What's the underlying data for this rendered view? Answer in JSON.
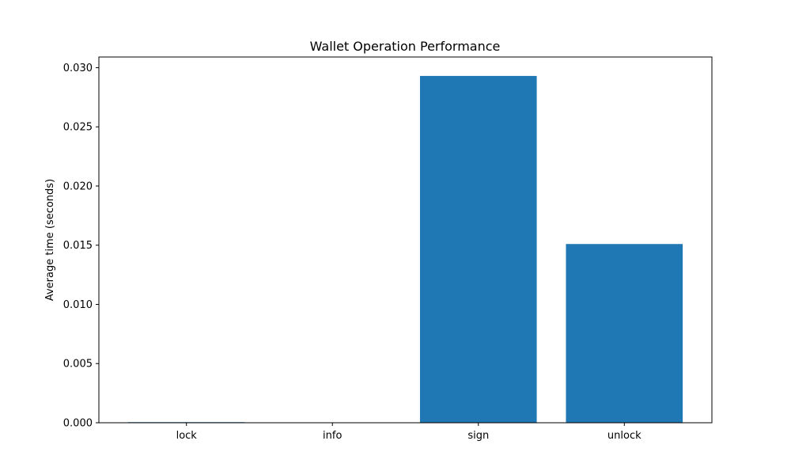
{
  "chart_data": {
    "type": "bar",
    "title": "Wallet Operation Performance",
    "xlabel": "",
    "ylabel": "Average time (seconds)",
    "categories": [
      "lock",
      "info",
      "sign",
      "unlock"
    ],
    "values": [
      5e-05,
      1e-05,
      0.0293,
      0.0151
    ],
    "ylim": [
      0,
      0.0309
    ],
    "yticks": [
      0.0,
      0.005,
      0.01,
      0.015,
      0.02,
      0.025,
      0.03
    ],
    "ytick_labels": [
      "0.000",
      "0.005",
      "0.010",
      "0.015",
      "0.020",
      "0.025",
      "0.030"
    ],
    "grid": false,
    "bar_color": "#1f77b4"
  }
}
